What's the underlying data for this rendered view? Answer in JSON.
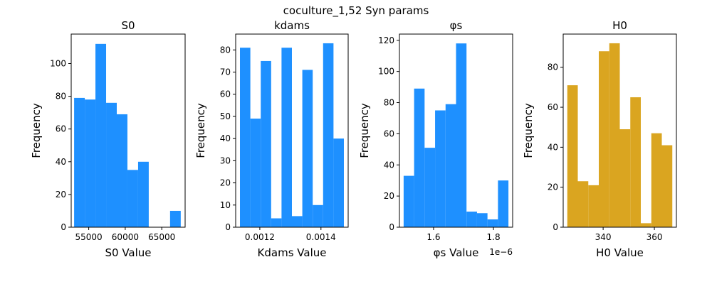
{
  "suptitle": "coculture_1,52 Syn params",
  "chart_data": [
    {
      "type": "bar",
      "title": "S0",
      "xlabel": "S0 Value",
      "ylabel": "Frequency",
      "color": "#1e90ff",
      "bin_edges": [
        53000,
        54460,
        55920,
        57380,
        58840,
        60300,
        61760,
        63220,
        64680,
        66140,
        67600
      ],
      "values": [
        79,
        78,
        112,
        76,
        69,
        35,
        40,
        0,
        0,
        10
      ],
      "xlim": [
        52600,
        68200
      ],
      "ylim": [
        0,
        118
      ],
      "xticks": [
        55000,
        60000,
        65000
      ],
      "xtick_labels": [
        "55000",
        "60000",
        "65000"
      ],
      "yticks": [
        0,
        20,
        40,
        60,
        80,
        100
      ],
      "ytick_labels": [
        "0",
        "20",
        "40",
        "60",
        "80",
        "100"
      ]
    },
    {
      "type": "bar",
      "title": "kdams",
      "xlabel": "Kdams Value",
      "ylabel": "Frequency",
      "color": "#1e90ff",
      "bin_edges": [
        0.001135,
        0.001169,
        0.001203,
        0.001237,
        0.001271,
        0.001305,
        0.001339,
        0.001373,
        0.001407,
        0.001441,
        0.001475
      ],
      "values": [
        81,
        49,
        75,
        4,
        81,
        5,
        71,
        10,
        83,
        40
      ],
      "xlim": [
        0.001121,
        0.001489
      ],
      "ylim": [
        0,
        87.15
      ],
      "xticks": [
        0.0012,
        0.0014
      ],
      "xtick_labels": [
        "0.0012",
        "0.0014"
      ],
      "yticks": [
        0,
        10,
        20,
        30,
        40,
        50,
        60,
        70,
        80
      ],
      "ytick_labels": [
        "0",
        "10",
        "20",
        "30",
        "40",
        "50",
        "60",
        "70",
        "80"
      ]
    },
    {
      "type": "bar",
      "title": "φs",
      "xlabel": "φs Value",
      "ylabel": "Frequency",
      "color": "#1e90ff",
      "axis_offset_label": "1e−6",
      "bin_edges": [
        1.5,
        1.535,
        1.57,
        1.605,
        1.64,
        1.675,
        1.71,
        1.745,
        1.78,
        1.815,
        1.85
      ],
      "values": [
        33,
        89,
        51,
        75,
        79,
        118,
        10,
        9,
        5,
        30
      ],
      "xlim": [
        1.486,
        1.864
      ],
      "ylim": [
        0,
        124
      ],
      "xticks": [
        1.6,
        1.8
      ],
      "xtick_labels": [
        "1.6",
        "1.8"
      ],
      "yticks": [
        0,
        20,
        40,
        60,
        80,
        100,
        120
      ],
      "ytick_labels": [
        "0",
        "20",
        "40",
        "60",
        "80",
        "100",
        "120"
      ]
    },
    {
      "type": "bar",
      "title": "H0",
      "xlabel": "H0 Value",
      "ylabel": "Frequency",
      "color": "#daa520",
      "bin_edges": [
        326,
        330.1,
        334.2,
        338.3,
        342.4,
        346.5,
        350.6,
        354.7,
        358.8,
        362.9,
        367
      ],
      "values": [
        71,
        23,
        21,
        88,
        92,
        49,
        65,
        2,
        47,
        41
      ],
      "xlim": [
        324.4,
        368.6
      ],
      "ylim": [
        0,
        96.6
      ],
      "xticks": [
        340,
        360
      ],
      "xtick_labels": [
        "340",
        "360"
      ],
      "yticks": [
        0,
        20,
        40,
        60,
        80
      ],
      "ytick_labels": [
        "0",
        "20",
        "40",
        "60",
        "80"
      ]
    }
  ]
}
